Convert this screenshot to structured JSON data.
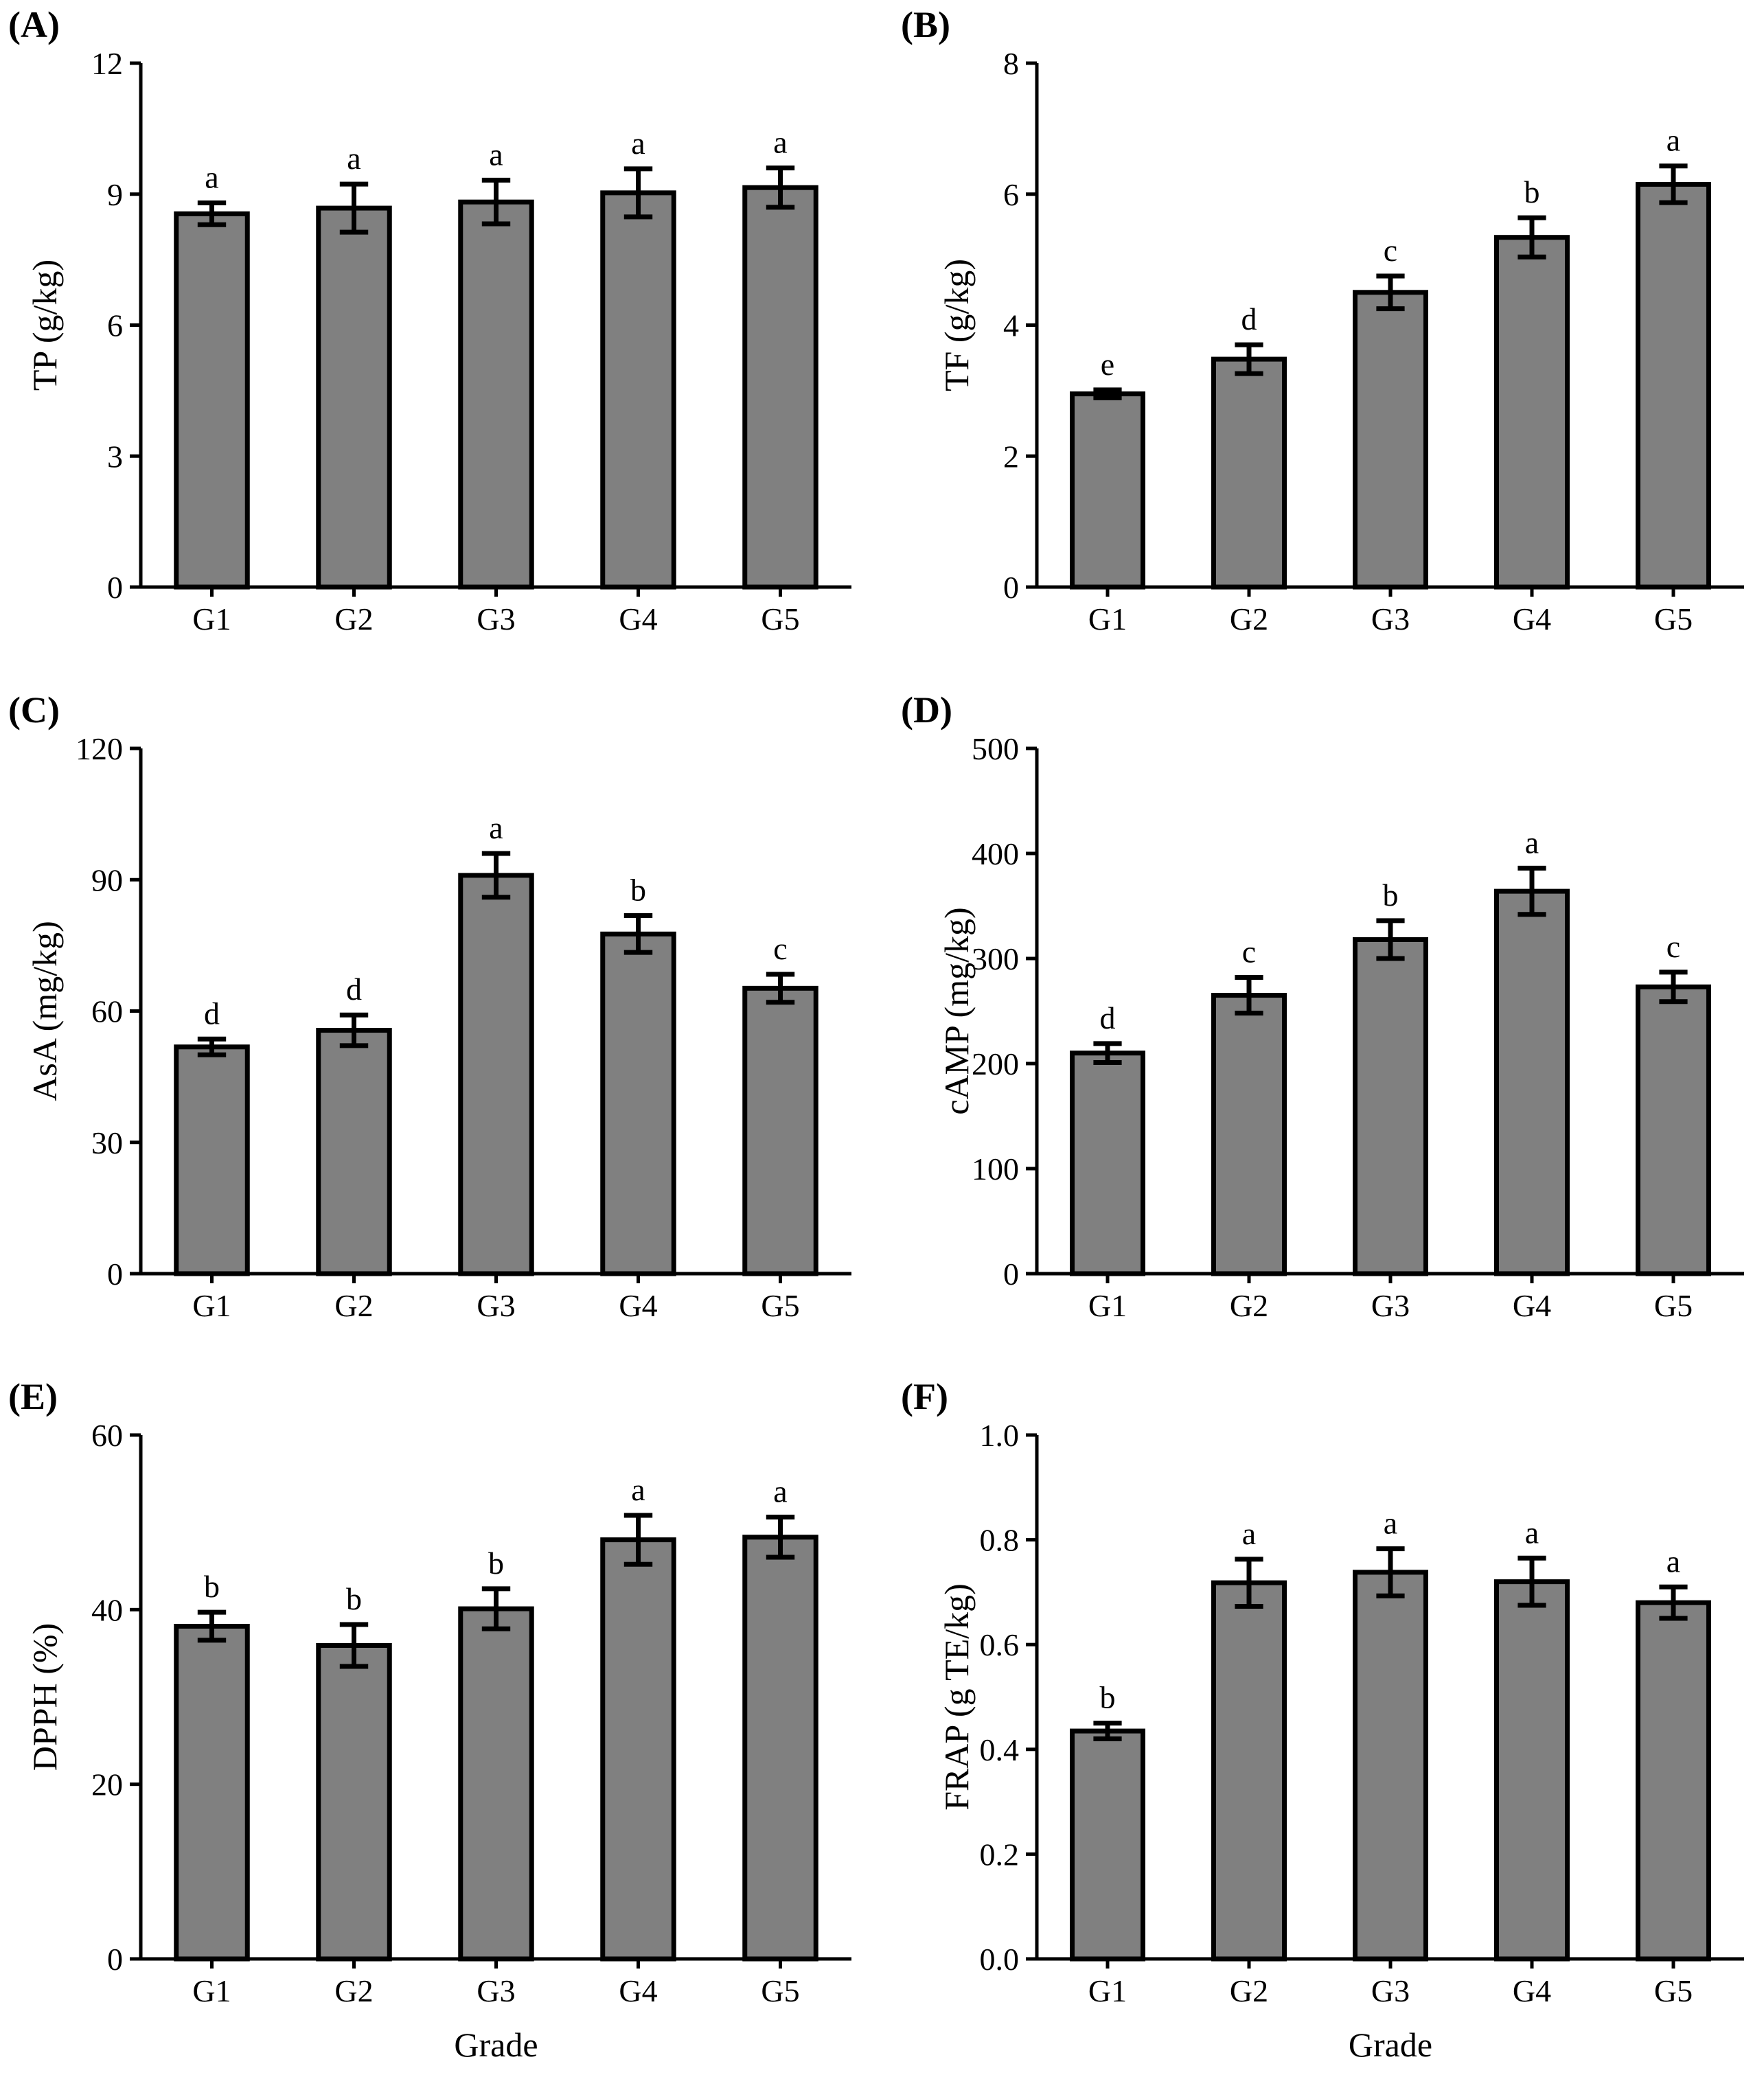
{
  "figure": {
    "bar_color": "#808080"
  },
  "chart_data": [
    {
      "type": "bar",
      "panel": "(A)",
      "categories": [
        "G1",
        "G2",
        "G3",
        "G4",
        "G5"
      ],
      "values": [
        8.55,
        8.68,
        8.82,
        9.03,
        9.15
      ],
      "errors": [
        0.25,
        0.55,
        0.5,
        0.55,
        0.45
      ],
      "letters": [
        "a",
        "a",
        "a",
        "a",
        "a"
      ],
      "ylabel": "TP (g/kg)",
      "xlabel": "",
      "ylim": [
        0,
        12
      ],
      "yticks": [
        "0",
        "3",
        "6",
        "9",
        "12"
      ]
    },
    {
      "type": "bar",
      "panel": "(B)",
      "categories": [
        "G1",
        "G2",
        "G3",
        "G4",
        "G5"
      ],
      "values": [
        2.95,
        3.48,
        4.5,
        5.34,
        6.15
      ],
      "errors": [
        0.06,
        0.22,
        0.25,
        0.3,
        0.28
      ],
      "letters": [
        "e",
        "d",
        "c",
        "b",
        "a"
      ],
      "ylabel": "TF (g/kg)",
      "xlabel": "",
      "ylim": [
        0,
        8
      ],
      "yticks": [
        "0",
        "2",
        "4",
        "6",
        "8"
      ]
    },
    {
      "type": "bar",
      "panel": "(C)",
      "categories": [
        "G1",
        "G2",
        "G3",
        "G4",
        "G5"
      ],
      "values": [
        51.8,
        55.6,
        91,
        77.6,
        65.2
      ],
      "errors": [
        1.8,
        3.5,
        5,
        4.2,
        3.2
      ],
      "letters": [
        "d",
        "d",
        "a",
        "b",
        "c"
      ],
      "ylabel": "AsA (mg/kg)",
      "xlabel": "",
      "ylim": [
        0,
        120
      ],
      "yticks": [
        "0",
        "30",
        "60",
        "90",
        "120"
      ]
    },
    {
      "type": "bar",
      "panel": "(D)",
      "categories": [
        "G1",
        "G2",
        "G3",
        "G4",
        "G5"
      ],
      "values": [
        210,
        265,
        318,
        364,
        273
      ],
      "errors": [
        9,
        17,
        18,
        22,
        14
      ],
      "letters": [
        "d",
        "c",
        "b",
        "a",
        "c"
      ],
      "ylabel": "cAMP (mg/kg)",
      "xlabel": "",
      "ylim": [
        0,
        500
      ],
      "yticks": [
        "0",
        "100",
        "200",
        "300",
        "400",
        "500"
      ]
    },
    {
      "type": "bar",
      "panel": "(E)",
      "categories": [
        "G1",
        "G2",
        "G3",
        "G4",
        "G5"
      ],
      "values": [
        38.1,
        35.9,
        40.1,
        48,
        48.3
      ],
      "errors": [
        1.6,
        2.4,
        2.3,
        2.8,
        2.3
      ],
      "letters": [
        "b",
        "b",
        "b",
        "a",
        "a"
      ],
      "ylabel": "DPPH (%)",
      "xlabel": "Grade",
      "ylim": [
        0,
        60
      ],
      "yticks": [
        "0",
        "20",
        "40",
        "60"
      ]
    },
    {
      "type": "bar",
      "panel": "(F)",
      "categories": [
        "G1",
        "G2",
        "G3",
        "G4",
        "G5"
      ],
      "values": [
        0.435,
        0.718,
        0.738,
        0.72,
        0.68
      ],
      "errors": [
        0.015,
        0.045,
        0.045,
        0.045,
        0.03
      ],
      "letters": [
        "b",
        "a",
        "a",
        "a",
        "a"
      ],
      "ylabel": "FRAP (g TE/kg)",
      "xlabel": "Grade",
      "ylim": [
        0,
        1.0
      ],
      "yticks": [
        "0.0",
        "0.2",
        "0.4",
        "0.6",
        "0.8",
        "1.0"
      ]
    }
  ]
}
